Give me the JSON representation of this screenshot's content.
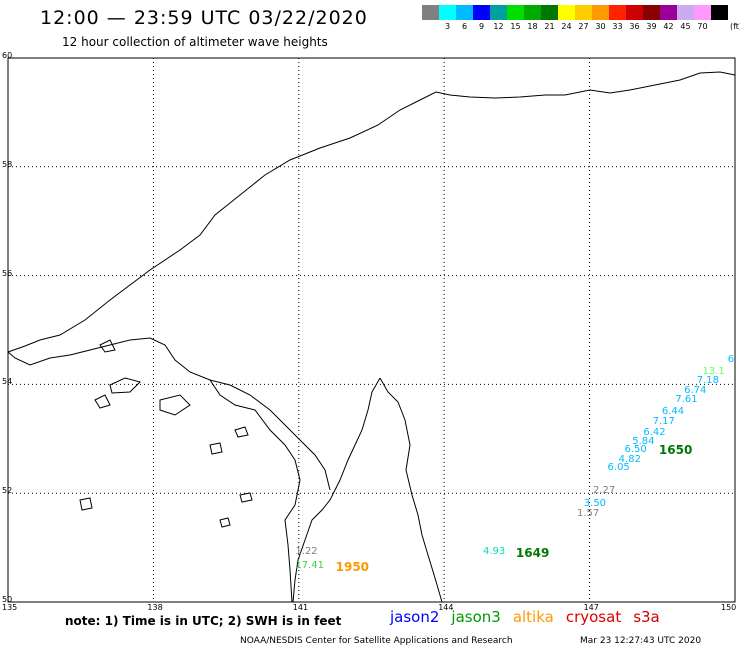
{
  "header": {
    "title": "12:00 — 23:59 UTC 03/22/2020",
    "subtitle": "12 hour collection of altimeter wave heights"
  },
  "scale": {
    "unit": "(ft)",
    "items": [
      {
        "color": "#808080",
        "label": ""
      },
      {
        "color": "#00ffff",
        "label": "3"
      },
      {
        "color": "#00bbff",
        "label": "6"
      },
      {
        "color": "#0000ff",
        "label": "9"
      },
      {
        "color": "#00a0a0",
        "label": "12"
      },
      {
        "color": "#00dd00",
        "label": "15"
      },
      {
        "color": "#00aa00",
        "label": "18"
      },
      {
        "color": "#007700",
        "label": "21"
      },
      {
        "color": "#ffff00",
        "label": "24"
      },
      {
        "color": "#ffcc00",
        "label": "27"
      },
      {
        "color": "#ff9900",
        "label": "30"
      },
      {
        "color": "#ff2200",
        "label": "33"
      },
      {
        "color": "#cc0000",
        "label": "36"
      },
      {
        "color": "#880000",
        "label": "39"
      },
      {
        "color": "#990099",
        "label": "42"
      },
      {
        "color": "#ccaaee",
        "label": "45"
      },
      {
        "color": "#ff99ff",
        "label": "70"
      },
      {
        "color": "#000000",
        "label": ""
      }
    ]
  },
  "axes": {
    "lat_labels": [
      "60",
      "58",
      "56",
      "54",
      "52",
      "50"
    ],
    "lon_labels": [
      "135",
      "138",
      "141",
      "144",
      "147",
      "150"
    ]
  },
  "footer": {
    "note": "note: 1) Time is in UTC; 2) SWH is in feet",
    "credit": "NOAA/NESDIS Center for Satellite Applications and Research",
    "timestamp": "Mar 23 12:27:43 UTC 2020",
    "satellites": [
      {
        "name": "jason2",
        "color": "#0000ff"
      },
      {
        "name": "jason3",
        "color": "#009900"
      },
      {
        "name": "altika",
        "color": "#ff9900"
      },
      {
        "name": "cryosat",
        "color": "#dd0000"
      },
      {
        "name": "s3a",
        "color": "#cc0000"
      }
    ]
  },
  "wave_labels": [
    {
      "text": "6",
      "lon": 149.85,
      "lat": 54.44,
      "color": "#00bbff",
      "big": false
    },
    {
      "text": "13.1",
      "lon": 149.33,
      "lat": 54.23,
      "color": "#66ff66",
      "big": false
    },
    {
      "text": "7.18",
      "lon": 149.21,
      "lat": 54.06,
      "color": "#00bbff",
      "big": false
    },
    {
      "text": "6.74",
      "lon": 148.95,
      "lat": 53.88,
      "color": "#00bbff",
      "big": false
    },
    {
      "text": "7.61",
      "lon": 148.77,
      "lat": 53.71,
      "color": "#00bbff",
      "big": false
    },
    {
      "text": "6.44",
      "lon": 148.49,
      "lat": 53.49,
      "color": "#00bbff",
      "big": false
    },
    {
      "text": "7.17",
      "lon": 148.3,
      "lat": 53.31,
      "color": "#00bbff",
      "big": false
    },
    {
      "text": "6.42",
      "lon": 148.11,
      "lat": 53.11,
      "color": "#00bbff",
      "big": false
    },
    {
      "text": "5.84",
      "lon": 147.88,
      "lat": 52.95,
      "color": "#00bbff",
      "big": false
    },
    {
      "text": "6.50",
      "lon": 147.72,
      "lat": 52.8,
      "color": "#00bbff",
      "big": false
    },
    {
      "text": "1650",
      "lon": 148.43,
      "lat": 52.81,
      "color": "#007700",
      "big": true
    },
    {
      "text": "4.82",
      "lon": 147.6,
      "lat": 52.61,
      "color": "#00bbff",
      "big": false
    },
    {
      "text": "6.05",
      "lon": 147.37,
      "lat": 52.46,
      "color": "#00bbff",
      "big": false
    },
    {
      "text": "2.27",
      "lon": 147.07,
      "lat": 52.04,
      "color": "#808080",
      "big": false
    },
    {
      "text": "3.50",
      "lon": 146.88,
      "lat": 51.8,
      "color": "#00bbff",
      "big": false
    },
    {
      "text": "1.57",
      "lon": 146.74,
      "lat": 51.61,
      "color": "#808080",
      "big": false
    },
    {
      "text": "4.93",
      "lon": 144.8,
      "lat": 50.91,
      "color": "#00ddbb",
      "big": false
    },
    {
      "text": "1649",
      "lon": 145.48,
      "lat": 50.91,
      "color": "#007700",
      "big": true
    },
    {
      "text": "1.22",
      "lon": 140.93,
      "lat": 50.91,
      "color": "#808080",
      "big": false
    },
    {
      "text": "17.41",
      "lon": 140.93,
      "lat": 50.66,
      "color": "#44cc44",
      "big": false
    },
    {
      "text": "1950",
      "lon": 141.76,
      "lat": 50.66,
      "color": "#ff9900",
      "big": true
    }
  ]
}
